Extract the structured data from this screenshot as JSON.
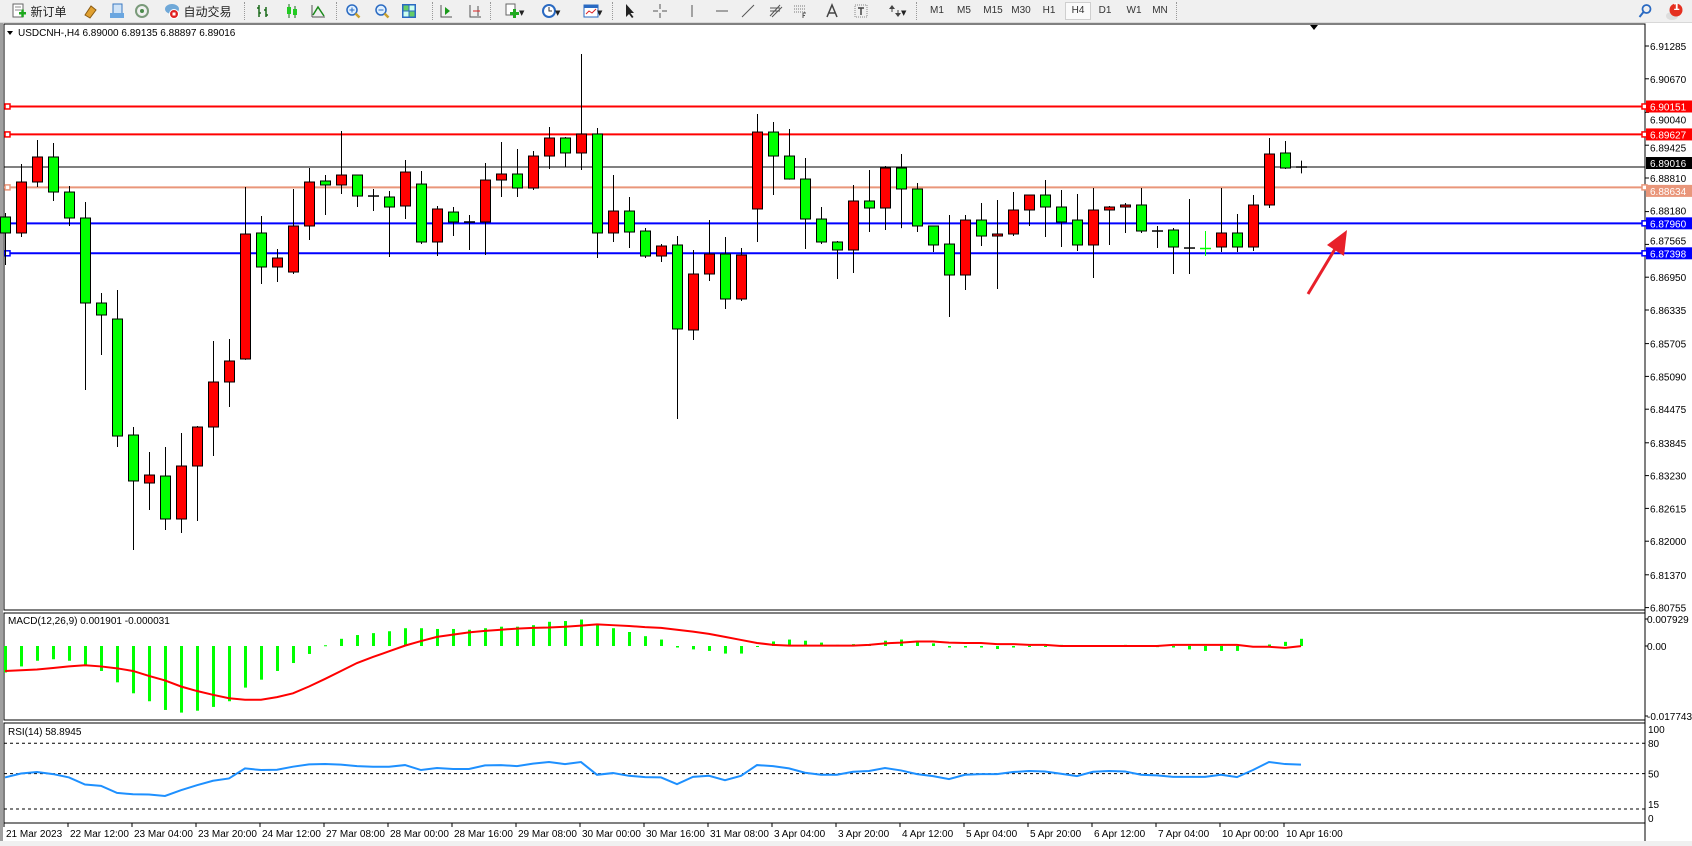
{
  "toolbar": {
    "new_order_label": "新订单",
    "auto_trading_label": "自动交易",
    "icons": [
      "new-order-icon",
      "market-watch-icon",
      "navigator-icon",
      "signals-icon",
      "auto-trading-icon",
      "bar-chart-icon",
      "candlestick-icon",
      "line-chart-icon",
      "zoom-in-icon",
      "zoom-out-icon",
      "tile-windows-icon",
      "autoscroll-icon",
      "chart-shift-icon",
      "indicators-icon",
      "periods-icon",
      "templates-icon",
      "cursor-icon",
      "crosshair-icon",
      "vertical-line-icon",
      "horizontal-line-icon",
      "trendline-icon",
      "fibo-fan-icon",
      "fibo-icon",
      "text-icon",
      "text-label-icon",
      "arrows-icon",
      "search-icon",
      "notification-icon"
    ],
    "timeframes": [
      "M1",
      "M5",
      "M15",
      "M30",
      "H1",
      "H4",
      "D1",
      "W1",
      "MN"
    ],
    "active_timeframe": "H4",
    "notification_count": "1"
  },
  "chart": {
    "header": "USDCNH-,H4  6.89000 6.89135 6.88897 6.89016",
    "price_axis_labels": [
      "6.91285",
      "6.90670",
      "6.90040",
      "6.89425",
      "6.88810",
      "6.88180",
      "6.87565",
      "6.86950",
      "6.86335",
      "6.85705",
      "6.85090",
      "6.84475",
      "6.83845",
      "6.83230",
      "6.82615",
      "6.82000",
      "6.81370",
      "6.80755"
    ],
    "bull_color": "#ff0000",
    "bear_color": "#00ff00",
    "horizontal_lines": [
      {
        "price": "6.90151",
        "color": "#ff0000",
        "label_text": "#ffffff"
      },
      {
        "price": "6.89627",
        "color": "#ff0000",
        "label_text": "#ffffff"
      },
      {
        "price": "6.88634",
        "color": "#e9967a",
        "label_text": "#ffffff"
      },
      {
        "price": "6.87960",
        "color": "#0000ff",
        "label_text": "#ffffff"
      },
      {
        "price": "6.87398",
        "color": "#0000ff",
        "label_text": "#ffffff"
      }
    ],
    "current_price": {
      "price": "6.89016",
      "color": "#000000"
    },
    "annotation_arrow_color": "#e8202a",
    "candles_ohlc": [
      [
        6.88079,
        6.88154,
        6.87179,
        6.87779
      ],
      [
        6.87779,
        6.89072,
        6.87704,
        6.88735
      ],
      [
        6.88735,
        6.89522,
        6.88641,
        6.89204
      ],
      [
        6.89204,
        6.89466,
        6.88379,
        6.88547
      ],
      [
        6.88547,
        6.8866,
        6.8791,
        6.8806
      ],
      [
        6.8806,
        6.8836,
        6.84835,
        6.86466
      ],
      [
        6.86466,
        6.86654,
        6.85491,
        6.86241
      ],
      [
        6.86166,
        6.8671,
        6.83766,
        6.83972
      ],
      [
        6.83991,
        6.84141,
        6.81835,
        6.83129
      ],
      [
        6.83091,
        6.83672,
        6.82585,
        6.83241
      ],
      [
        6.83222,
        6.83766,
        6.8221,
        6.82416
      ],
      [
        6.82416,
        6.84029,
        6.82154,
        6.8341
      ],
      [
        6.8341,
        6.8416,
        6.82379,
        6.84141
      ],
      [
        6.84141,
        6.85754,
        6.83597,
        6.84985
      ],
      [
        6.84985,
        6.85791,
        6.84516,
        6.85379
      ],
      [
        6.85416,
        6.88641,
        6.854,
        6.8776
      ],
      [
        6.87779,
        6.88097,
        6.86822,
        6.87141
      ],
      [
        6.87141,
        6.87479,
        6.8686,
        6.8731
      ],
      [
        6.87047,
        6.88604,
        6.8701,
        6.8791
      ],
      [
        6.8791,
        6.88997,
        6.87647,
        6.88735
      ],
      [
        6.88754,
        6.88866,
        6.88116,
        6.88679
      ],
      [
        6.88679,
        6.89691,
        6.8851,
        6.88866
      ],
      [
        6.88866,
        6.88866,
        6.88266,
        6.88472
      ],
      [
        6.88472,
        6.88604,
        6.88191,
        6.88472
      ],
      [
        6.88454,
        6.88566,
        6.87329,
        6.88266
      ],
      [
        6.88285,
        6.89147,
        6.88041,
        6.88922
      ],
      [
        6.88697,
        6.88941,
        6.87572,
        6.8761
      ],
      [
        6.8761,
        6.88285,
        6.87347,
        6.88229
      ],
      [
        6.88172,
        6.88266,
        6.87722,
        6.87985
      ],
      [
        6.87985,
        6.88116,
        6.8746,
        6.87985
      ],
      [
        6.87985,
        6.89091,
        6.87366,
        6.88772
      ],
      [
        6.88772,
        6.89485,
        6.88454,
        6.88885
      ],
      [
        6.88885,
        6.89354,
        6.88454,
        6.88622
      ],
      [
        6.88622,
        6.89316,
        6.88585,
        6.89222
      ],
      [
        6.89222,
        6.89766,
        6.88979,
        6.8956
      ],
      [
        6.8956,
        6.89579,
        6.89016,
        6.89279
      ],
      [
        6.89279,
        6.91135,
        6.8896,
        6.89635
      ],
      [
        6.89635,
        6.89747,
        6.8731,
        6.87779
      ],
      [
        6.87779,
        6.88866,
        6.8761,
        6.88191
      ],
      [
        6.88191,
        6.88454,
        6.87497,
        6.87797
      ],
      [
        6.87816,
        6.87872,
        6.8731,
        6.87347
      ],
      [
        6.87347,
        6.87572,
        6.87235,
        6.87535
      ],
      [
        6.87554,
        6.87722,
        6.84291,
        6.85979
      ],
      [
        6.8596,
        6.8746,
        6.85772,
        6.8701
      ],
      [
        6.8701,
        6.88022,
        6.86879,
        6.87385
      ],
      [
        6.87385,
        6.87704,
        6.86354,
        6.86541
      ],
      [
        6.86541,
        6.87497,
        6.86504,
        6.87366
      ],
      [
        6.88229,
        6.9001,
        6.8761,
        6.89672
      ],
      [
        6.89672,
        6.8986,
        6.88491,
        6.89222
      ],
      [
        6.89222,
        6.89729,
        6.8878,
        6.88791
      ],
      [
        6.88791,
        6.89185,
        6.87479,
        6.88041
      ],
      [
        6.88041,
        6.88266,
        6.87572,
        6.8761
      ],
      [
        6.8761,
        6.87629,
        6.86916,
        6.8746
      ],
      [
        6.8746,
        6.88679,
        6.87029,
        6.88379
      ],
      [
        6.88379,
        6.8896,
        6.87797,
        6.88247
      ],
      [
        6.88247,
        6.89035,
        6.87835,
        6.88997
      ],
      [
        6.88997,
        6.8926,
        6.8787,
        6.88604
      ],
      [
        6.88604,
        6.88716,
        6.87797,
        6.8791
      ],
      [
        6.8791,
        6.8791,
        6.87422,
        6.87554
      ],
      [
        6.87572,
        6.88116,
        6.86204,
        6.86991
      ],
      [
        6.86991,
        6.88116,
        6.8671,
        6.88022
      ],
      [
        6.88022,
        6.88341,
        6.87535,
        6.87722
      ],
      [
        6.87722,
        6.88397,
        6.86729,
        6.8776
      ],
      [
        6.8776,
        6.88547,
        6.87722,
        6.8821
      ],
      [
        6.8821,
        6.88491,
        6.8791,
        6.88491
      ],
      [
        6.88491,
        6.88772,
        6.87704,
        6.88266
      ],
      [
        6.88266,
        6.88585,
        6.87516,
        6.87985
      ],
      [
        6.88022,
        6.8851,
        6.87441,
        6.87554
      ],
      [
        6.87554,
        6.88622,
        6.86935,
        6.8821
      ],
      [
        6.8821,
        6.88285,
        6.87554,
        6.88266
      ],
      [
        6.88266,
        6.88341,
        6.87779,
        6.88304
      ],
      [
        6.88304,
        6.88622,
        6.87779,
        6.87816
      ],
      [
        6.87816,
        6.8791,
        6.87497,
        6.87816
      ],
      [
        6.87835,
        6.87872,
        6.8701,
        6.87516
      ],
      [
        6.87497,
        6.88416,
        6.8701,
        6.87497
      ],
      [
        6.87497,
        6.87816,
        6.87347,
        6.87488
      ],
      [
        6.87516,
        6.88622,
        6.87422,
        6.87779
      ],
      [
        6.87779,
        6.88135,
        6.87422,
        6.87516
      ],
      [
        6.87516,
        6.88491,
        6.87441,
        6.88304
      ],
      [
        6.88304,
        6.8956,
        6.88247,
        6.8926
      ],
      [
        6.89279,
        6.89504,
        6.88979,
        6.88997
      ],
      [
        6.89,
        6.89135,
        6.88897,
        6.89016
      ]
    ],
    "time_labels": [
      "21 Mar 2023",
      "22 Mar 12:00",
      "23 Mar 04:00",
      "23 Mar 20:00",
      "24 Mar 12:00",
      "27 Mar 08:00",
      "28 Mar 00:00",
      "28 Mar 16:00",
      "29 Mar 08:00",
      "30 Mar 00:00",
      "30 Mar 16:00",
      "31 Mar 08:00",
      "3 Apr 04:00",
      "3 Apr 20:00",
      "4 Apr 12:00",
      "5 Apr 04:00",
      "5 Apr 20:00",
      "6 Apr 12:00",
      "7 Apr 04:00",
      "10 Apr 00:00",
      "10 Apr 16:00"
    ]
  },
  "macd": {
    "header": "MACD(12,26,9) 0.001901 -0.000031",
    "axis_labels": [
      "0.007929",
      "0.00",
      "-0.017743"
    ],
    "histogram_color": "#00ff00",
    "signal_color": "#ff0000",
    "histogram": [
      -0.007,
      -0.0054,
      -0.0039,
      -0.0035,
      -0.0039,
      -0.005,
      -0.0066,
      -0.0096,
      -0.0125,
      -0.0146,
      -0.0169,
      -0.0176,
      -0.0171,
      -0.0161,
      -0.0146,
      -0.011,
      -0.0089,
      -0.0066,
      -0.0045,
      -0.0021,
      0.0002,
      0.0019,
      0.0029,
      0.0034,
      0.0039,
      0.0047,
      0.0047,
      0.0045,
      0.0045,
      0.0043,
      0.0047,
      0.0051,
      0.0051,
      0.0055,
      0.0064,
      0.0066,
      0.007,
      0.0058,
      0.0047,
      0.0037,
      0.0026,
      0.0017,
      -0.0004,
      -0.0009,
      -0.0013,
      -0.002,
      -0.002,
      0.0,
      0.0012,
      0.0017,
      0.0014,
      0.0009,
      0.0003,
      0.0005,
      0.0005,
      0.0014,
      0.0017,
      0.0011,
      0.0007,
      -0.0004,
      -0.0004,
      -0.0004,
      -0.0008,
      -0.0004,
      0.0,
      0.0,
      0.0003,
      0.0,
      0.0,
      0.0,
      0.0003,
      0.0001,
      -0.0003,
      -0.0004,
      -0.0009,
      -0.0013,
      -0.0013,
      -0.0013,
      -0.0002,
      0.0004,
      0.0011,
      0.0019
    ],
    "signal": [
      -0.0066,
      -0.0064,
      -0.0062,
      -0.0058,
      -0.0054,
      -0.0051,
      -0.0054,
      -0.0059,
      -0.0066,
      -0.0079,
      -0.0091,
      -0.0107,
      -0.0119,
      -0.0129,
      -0.0138,
      -0.0142,
      -0.0142,
      -0.0135,
      -0.0125,
      -0.0107,
      -0.0087,
      -0.0066,
      -0.0045,
      -0.0029,
      -0.0014,
      0.0001,
      0.0013,
      0.0024,
      0.003,
      0.0036,
      0.004,
      0.0043,
      0.0046,
      0.0048,
      0.0049,
      0.0051,
      0.0054,
      0.0057,
      0.0055,
      0.0053,
      0.005,
      0.0048,
      0.0043,
      0.0038,
      0.0032,
      0.0024,
      0.0016,
      0.0008,
      0.0003,
      0.0001,
      0.0001,
      0.0001,
      0.0001,
      0.0001,
      0.0003,
      0.0007,
      0.0009,
      0.0012,
      0.0012,
      0.0009,
      0.0008,
      0.0008,
      0.0005,
      0.0005,
      0.0003,
      0.0003,
      0,
      0,
      0,
      0,
      0,
      0,
      0,
      0.0003,
      0.0003,
      0.0003,
      0.0003,
      0.0003,
      -0.0002,
      -0.0002,
      -0.0005,
      -3e-05
    ]
  },
  "rsi": {
    "header": "RSI(14) 58.8945",
    "axis_labels": [
      "100",
      "80",
      "50",
      "15",
      "0"
    ],
    "levels": [
      80,
      50,
      15
    ],
    "line_color": "#1e90ff",
    "values": [
      46.2,
      50.1,
      51.5,
      49.5,
      46.2,
      39.2,
      37.9,
      30.9,
      29.6,
      29.3,
      27.9,
      33.6,
      38.5,
      42.9,
      45.2,
      55.1,
      53.5,
      53.8,
      56.8,
      59.1,
      59.4,
      58.8,
      57.4,
      56.8,
      56.8,
      58.4,
      53.5,
      55.5,
      54.5,
      54.5,
      58.1,
      58.4,
      57.4,
      59.8,
      61.4,
      59.4,
      61.4,
      48.8,
      50.5,
      47.8,
      46.5,
      46.2,
      39.5,
      46.8,
      47.8,
      43.5,
      47.8,
      58.4,
      57.4,
      55.1,
      50.8,
      48.8,
      48.8,
      51.8,
      52.5,
      55.5,
      53.1,
      49.5,
      47.5,
      44.5,
      48.8,
      49.5,
      49.5,
      51.5,
      52.5,
      52.1,
      49.8,
      47.5,
      51.8,
      52.5,
      52.1,
      48.8,
      48.2,
      46.8,
      46.8,
      46.8,
      48.8,
      46.5,
      53.5,
      61.4,
      59.4,
      58.9
    ]
  }
}
